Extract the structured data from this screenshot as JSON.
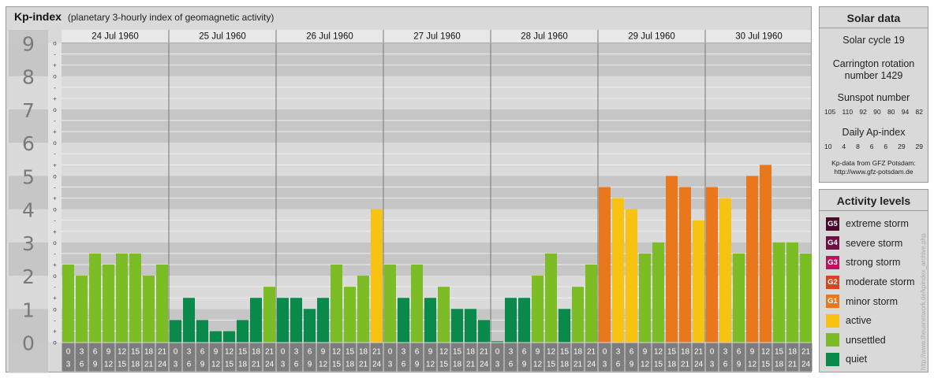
{
  "header": {
    "title": "Kp-index",
    "subtitle": "(planetary 3-hourly index of geomagnetic activity)"
  },
  "chart_data": {
    "type": "bar",
    "title": "Kp-index",
    "subtitle": "(planetary 3-hourly index of geomagnetic activity)",
    "ylim": [
      0,
      9
    ],
    "y_ticks": [
      "0",
      "1",
      "2",
      "3",
      "4",
      "5",
      "6",
      "7",
      "8",
      "9"
    ],
    "minor_tick_labels": [
      "+",
      "o",
      "-"
    ],
    "days": [
      "24 Jul 1960",
      "25 Jul 1960",
      "26 Jul 1960",
      "27 Jul 1960",
      "28 Jul 1960",
      "29 Jul 1960",
      "30 Jul 1960"
    ],
    "interval_start_labels": [
      "0",
      "3",
      "6",
      "9",
      "12",
      "15",
      "18",
      "21"
    ],
    "interval_end_labels": [
      "3",
      "6",
      "9",
      "12",
      "15",
      "18",
      "21",
      "24"
    ],
    "values": [
      [
        2.333,
        2.0,
        2.667,
        2.333,
        2.667,
        2.667,
        2.0,
        2.333
      ],
      [
        0.667,
        1.333,
        0.667,
        0.333,
        0.333,
        0.667,
        1.333,
        1.667
      ],
      [
        1.333,
        1.333,
        1.0,
        1.333,
        2.333,
        1.667,
        2.0,
        4.0
      ],
      [
        2.333,
        1.333,
        2.333,
        1.333,
        1.667,
        1.0,
        1.0,
        0.667
      ],
      [
        0.0,
        1.333,
        1.333,
        2.0,
        2.667,
        1.0,
        1.667,
        2.333
      ],
      [
        4.667,
        4.333,
        4.0,
        2.667,
        3.0,
        5.0,
        4.667,
        3.667
      ],
      [
        4.667,
        4.333,
        2.667,
        5.0,
        5.333,
        3.0,
        3.0,
        2.667
      ]
    ],
    "activity_colors": {
      "quiet": "#0a8a4a",
      "unsettled": "#7cbd25",
      "active": "#f7c211",
      "minor_storm": "#e8781b"
    },
    "grid": true
  },
  "solar": {
    "title": "Solar data",
    "cycle": "Solar cycle 19",
    "carrington_line1": "Carrington rotation",
    "carrington_line2": "number 1429",
    "sunspot_label": "Sunspot number",
    "sunspot_values": [
      "105",
      "110",
      "92",
      "90",
      "80",
      "94",
      "82"
    ],
    "ap_label": "Daily Ap-index",
    "ap_values": [
      "10",
      "4",
      "8",
      "6",
      "6",
      "29",
      "29"
    ],
    "source_line1": "Kp-data from GFZ Potsdam:",
    "source_line2": "http://www.gfz-potsdam.de"
  },
  "activity": {
    "title": "Activity levels",
    "items": [
      {
        "badge": "G5",
        "label": "extreme storm",
        "color": "#4a0a2a"
      },
      {
        "badge": "G4",
        "label": "severe storm",
        "color": "#6e1042"
      },
      {
        "badge": "G3",
        "label": "strong storm",
        "color": "#b6165e"
      },
      {
        "badge": "G2",
        "label": "moderate storm",
        "color": "#d9441c"
      },
      {
        "badge": "G1",
        "label": "minor storm",
        "color": "#e8781b"
      },
      {
        "badge": "",
        "label": "active",
        "color": "#f7c211"
      },
      {
        "badge": "",
        "label": "unsettled",
        "color": "#7cbd25"
      },
      {
        "badge": "",
        "label": "quiet",
        "color": "#0a8a4a"
      }
    ]
  },
  "watermark": "http://www.theusnetwork.de/kpindex_archive.php"
}
